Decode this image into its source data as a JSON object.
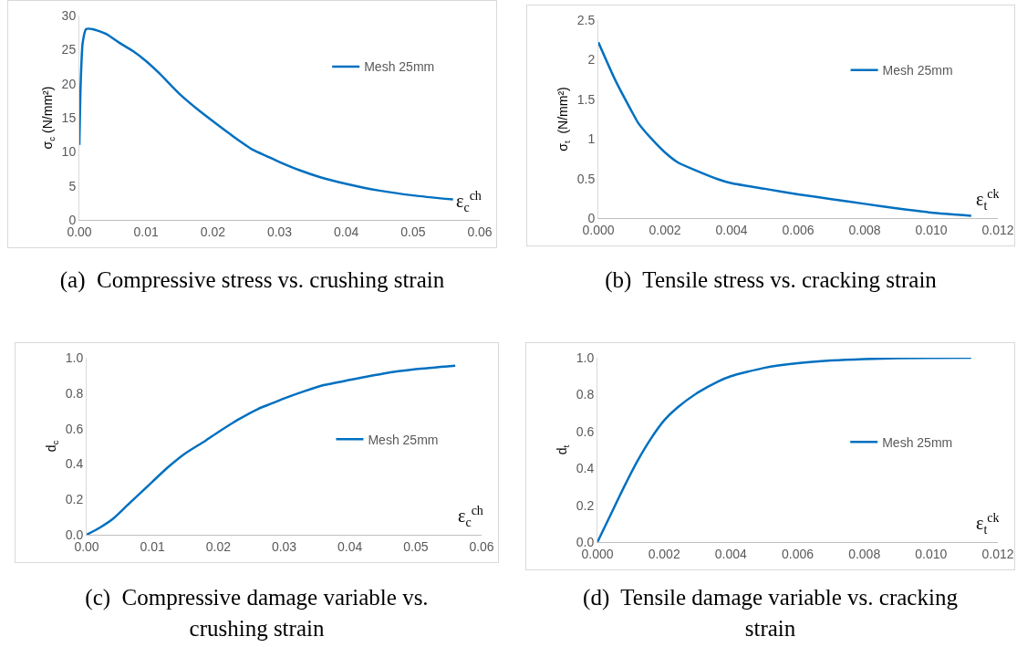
{
  "chart_data": [
    {
      "type": "line",
      "xlabel": "ε$_{c}$$^{ch}$",
      "ylabel": "σ$_{c}$ (N/mm²)",
      "annotations": [
        "(a)  Compressive stress vs. crushing strain"
      ],
      "legend": "top right",
      "grid": false,
      "marker": "none",
      "line_style": "solid",
      "xlim": [
        0,
        0.06
      ],
      "xticks": [
        {
          "value": 0,
          "label": "0.00"
        },
        {
          "value": 0.01,
          "label": "0.01"
        },
        {
          "value": 0.02,
          "label": "0.02"
        },
        {
          "value": 0.03,
          "label": "0.03"
        },
        {
          "value": 0.04,
          "label": "0.04"
        },
        {
          "value": 0.05,
          "label": "0.05"
        },
        {
          "value": 0.06,
          "label": "0.06"
        }
      ],
      "ylim": [
        0,
        30
      ],
      "yticks": [
        0,
        5,
        10,
        15,
        20,
        25,
        30
      ],
      "series": [
        {
          "name": "Mesh 25mm",
          "color": "#0070c0",
          "x": [
            0,
            0.0002,
            0.0005,
            0.001,
            0.002,
            0.004,
            0.006,
            0.008,
            0.01,
            0.012,
            0.015,
            0.018,
            0.02,
            0.023,
            0.026,
            0.028,
            0.03,
            0.033,
            0.036,
            0.04,
            0.045,
            0.05,
            0.056
          ],
          "values": [
            11,
            20,
            26,
            28,
            28,
            27.3,
            26,
            24.8,
            23.3,
            21.5,
            18.5,
            16,
            14.5,
            12.3,
            10.3,
            9.4,
            8.5,
            7.3,
            6.3,
            5.3,
            4.3,
            3.6,
            3.0
          ]
        }
      ]
    },
    {
      "type": "line",
      "xlabel": "ε$_{t}$$^{ck}$",
      "ylabel": "σ$_{t}$  (N/mm²)",
      "annotations": [
        "(b)  Tensile stress vs. cracking strain"
      ],
      "legend": "top right",
      "grid": false,
      "marker": "none",
      "line_style": "solid",
      "xlim": [
        0,
        0.012
      ],
      "xticks": [
        {
          "value": 0,
          "label": "0.000"
        },
        {
          "value": 0.002,
          "label": "0.002"
        },
        {
          "value": 0.004,
          "label": "0.004"
        },
        {
          "value": 0.006,
          "label": "0.006"
        },
        {
          "value": 0.008,
          "label": "0.008"
        },
        {
          "value": 0.01,
          "label": "0.010"
        },
        {
          "value": 0.012,
          "label": "0.012"
        }
      ],
      "ylim": [
        0,
        2.5
      ],
      "yticks": [
        0,
        0.5,
        1,
        1.5,
        2,
        2.5
      ],
      "series": [
        {
          "name": "Mesh 25mm",
          "color": "#0070c0",
          "x": [
            0,
            0.0005,
            0.001,
            0.0012,
            0.0016,
            0.002,
            0.0024,
            0.003,
            0.0036,
            0.004,
            0.005,
            0.006,
            0.007,
            0.008,
            0.009,
            0.01,
            0.0112
          ],
          "values": [
            2.22,
            1.75,
            1.35,
            1.2,
            1.0,
            0.83,
            0.7,
            0.59,
            0.49,
            0.44,
            0.37,
            0.3,
            0.24,
            0.18,
            0.12,
            0.07,
            0.03
          ]
        }
      ]
    },
    {
      "type": "line",
      "xlabel": "ε$_{c}$$^{ch}$",
      "ylabel": "d$_{c}$",
      "annotations": [
        "(c)  Compressive damage variable vs. crushing strain"
      ],
      "legend": "right",
      "grid": false,
      "marker": "none",
      "line_style": "solid",
      "xlim": [
        0,
        0.06
      ],
      "xticks": [
        {
          "value": 0,
          "label": "0.00"
        },
        {
          "value": 0.01,
          "label": "0.01"
        },
        {
          "value": 0.02,
          "label": "0.02"
        },
        {
          "value": 0.03,
          "label": "0.03"
        },
        {
          "value": 0.04,
          "label": "0.04"
        },
        {
          "value": 0.05,
          "label": "0.05"
        },
        {
          "value": 0.06,
          "label": "0.06"
        }
      ],
      "ylim": [
        0,
        1
      ],
      "yticks": [
        {
          "value": 0,
          "label": "0.0"
        },
        {
          "value": 0.2,
          "label": "0.2"
        },
        {
          "value": 0.4,
          "label": "0.4"
        },
        {
          "value": 0.6,
          "label": "0.6"
        },
        {
          "value": 0.8,
          "label": "0.8"
        },
        {
          "value": 1,
          "label": "1.0"
        }
      ],
      "series": [
        {
          "name": "Mesh 25mm",
          "color": "#0070c0",
          "x": [
            0,
            0.002,
            0.004,
            0.006,
            0.008,
            0.01,
            0.012,
            0.015,
            0.018,
            0.02,
            0.023,
            0.026,
            0.028,
            0.03,
            0.033,
            0.036,
            0.04,
            0.045,
            0.05,
            0.056
          ],
          "values": [
            0,
            0.04,
            0.09,
            0.16,
            0.23,
            0.3,
            0.37,
            0.46,
            0.53,
            0.58,
            0.65,
            0.71,
            0.74,
            0.77,
            0.81,
            0.845,
            0.875,
            0.91,
            0.935,
            0.955
          ]
        }
      ]
    },
    {
      "type": "line",
      "xlabel": "ε$_{t}$$^{ck}$",
      "ylabel": "d$_{t}$",
      "annotations": [
        "(d)  Tensile damage variable vs. cracking strain"
      ],
      "legend": "right",
      "grid": false,
      "marker": "none",
      "line_style": "solid",
      "xlim": [
        0,
        0.012
      ],
      "xticks": [
        {
          "value": 0,
          "label": "0.000"
        },
        {
          "value": 0.002,
          "label": "0.002"
        },
        {
          "value": 0.004,
          "label": "0.004"
        },
        {
          "value": 0.006,
          "label": "0.006"
        },
        {
          "value": 0.008,
          "label": "0.008"
        },
        {
          "value": 0.01,
          "label": "0.010"
        },
        {
          "value": 0.012,
          "label": "0.012"
        }
      ],
      "ylim": [
        0,
        1
      ],
      "yticks": [
        {
          "value": 0,
          "label": "0.0"
        },
        {
          "value": 0.2,
          "label": "0.2"
        },
        {
          "value": 0.4,
          "label": "0.4"
        },
        {
          "value": 0.6,
          "label": "0.6"
        },
        {
          "value": 0.8,
          "label": "0.8"
        },
        {
          "value": 1,
          "label": "1.0"
        }
      ],
      "series": [
        {
          "name": "Mesh 25mm",
          "color": "#0070c0",
          "x": [
            0,
            0.0004,
            0.0008,
            0.0012,
            0.0016,
            0.002,
            0.0024,
            0.003,
            0.0036,
            0.004,
            0.005,
            0.006,
            0.007,
            0.008,
            0.009,
            0.0112
          ],
          "values": [
            0,
            0.15,
            0.3,
            0.44,
            0.56,
            0.66,
            0.73,
            0.81,
            0.87,
            0.9,
            0.945,
            0.97,
            0.985,
            0.993,
            0.997,
            1.0
          ]
        }
      ]
    }
  ]
}
